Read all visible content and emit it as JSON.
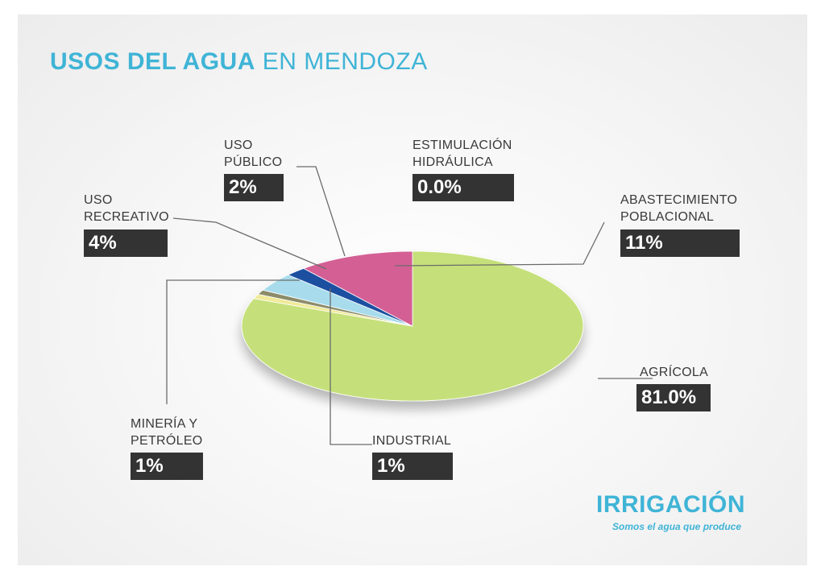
{
  "title": {
    "part1": "USOS DEL AGUA",
    "part2": " EN MENDOZA"
  },
  "chart_data": {
    "type": "pie",
    "title": "USOS DEL AGUA EN MENDOZA",
    "slices": [
      {
        "key": "agricola",
        "label_lines": [
          "AGRÍCOLA"
        ],
        "value": 81.0,
        "value_label": "81.0%",
        "color": "#c5e07a"
      },
      {
        "key": "industrial",
        "label_lines": [
          "INDUSTRIAL"
        ],
        "value": 1,
        "value_label": "1%",
        "color": "#f0ea9a"
      },
      {
        "key": "mineria",
        "label_lines": [
          "MINERÍA Y",
          "PETRÓLEO"
        ],
        "value": 1,
        "value_label": "1%",
        "color": "#8c8c6a"
      },
      {
        "key": "recreativo",
        "label_lines": [
          "USO",
          "RECREATIVO"
        ],
        "value": 4,
        "value_label": "4%",
        "color": "#a8dcec"
      },
      {
        "key": "publico",
        "label_lines": [
          "USO",
          "PÚBLICO"
        ],
        "value": 2,
        "value_label": "2%",
        "color": "#1c4fa0"
      },
      {
        "key": "estimulacion",
        "label_lines": [
          "ESTIMULACIÓN",
          "HIDRÁULICA"
        ],
        "value": 0.0,
        "value_label": "0.0%",
        "color": "#2e7fbf"
      },
      {
        "key": "abastecimiento",
        "label_lines": [
          "ABASTECIMIENTO",
          "POBLACIONAL"
        ],
        "value": 11,
        "value_label": "11%",
        "color": "#d45f95"
      }
    ]
  },
  "brand": {
    "name": "IRRIGACIÓN",
    "tagline": "Somos el agua que produce",
    "color": "#3fb4d6"
  }
}
